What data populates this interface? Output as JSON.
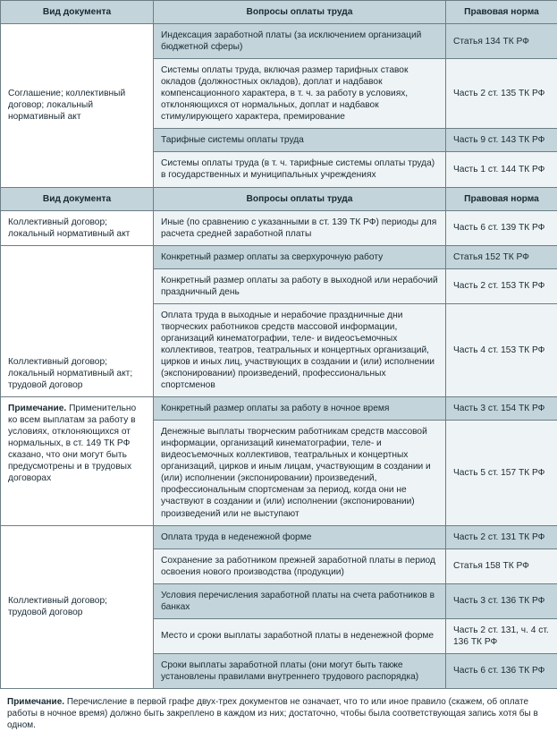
{
  "headers": {
    "col1": "Вид документа",
    "col2": "Вопросы оплаты труда",
    "col3": "Правовая норма"
  },
  "section1": {
    "doc": "Соглашение; коллективный договор; локальный нормативный акт",
    "rows": [
      {
        "q": "Индексация заработной платы (за исключением организаций бюджетной сферы)",
        "law": "Статья 134 ТК РФ"
      },
      {
        "q": "Системы оплаты труда, включая размер тарифных ставок окладов (должностных окладов), доплат и надбавок компенсационного характера, в т. ч. за работу в условиях, отклоняющихся от нормальных, доплат и надбавок стимулирующего характера, премирование",
        "law": "Часть 2 ст. 135 ТК РФ"
      },
      {
        "q": "Тарифные системы оплаты труда",
        "law": "Часть 9 ст. 143 ТК РФ"
      },
      {
        "q": "Системы оплаты труда (в т. ч. тарифные системы оплаты труда) в государственных и муниципальных учреждениях",
        "law": "Часть 1 ст. 144 ТК РФ"
      }
    ]
  },
  "section2": {
    "docA": "Коллективный договор; локальный нормативный акт",
    "docB": "Коллективный договор; локальный нормативный акт; трудовой договор",
    "noteLabel": "Примечание.",
    "noteText": " Применительно ко всем выплатам за работу в условиях, отклоняющихся от нормальных, в ст. 149 ТК РФ сказано, что они могут быть предусмотрены и в трудовых договорах",
    "rows": [
      {
        "q": "Иные (по сравнению с указанными в ст. 139 ТК РФ) периоды для расчета средней заработной платы",
        "law": "Часть 6 ст. 139 ТК РФ"
      },
      {
        "q": "Конкретный размер оплаты за сверхурочную работу",
        "law": "Статья 152 ТК РФ"
      },
      {
        "q": "Конкретный размер оплаты за работу в выходной или нерабочий праздничный день",
        "law": "Часть 2 ст. 153 ТК РФ"
      },
      {
        "q": "Оплата труда в выходные и нерабочие праздничные дни творческих работников средств массовой информации, организаций кинематографии, теле- и видеосъемочных коллективов, театров, театральных и концертных организаций, цирков и иных лиц, участвующих в создании и (или) исполнении (экспонировании) произведений, профессиональных спортсменов",
        "law": "Часть 4 ст. 153 ТК РФ"
      },
      {
        "q": "Конкретный размер оплаты за работу в ночное время",
        "law": "Часть 3 ст. 154 ТК РФ"
      },
      {
        "q": "Денежные выплаты творческим работникам средств массовой информации, организаций кинематографии, теле- и видеосъемочных коллективов, театральных и концертных организаций, цирков и иным лицам, участвующим в создании и (или) исполнении (экспонировании) произведений, профессиональным спортсменам за период, когда они не участвуют в создании и (или) исполнении (экспонировании) произведений или не выступают",
        "law": "Часть 5 ст. 157 ТК РФ"
      }
    ]
  },
  "section3": {
    "doc": "Коллективный договор; трудовой договор",
    "rows": [
      {
        "q": "Оплата труда в неденежной форме",
        "law": "Часть 2 ст. 131 ТК РФ"
      },
      {
        "q": "Сохранение за работником прежней заработной платы в период освоения нового производства (продукции)",
        "law": "Статья 158 ТК РФ"
      },
      {
        "q": "Условия перечисления заработной платы на счета работников в банках",
        "law": "Часть 3 ст. 136 ТК РФ"
      },
      {
        "q": "Место и сроки выплаты заработной платы в неденежной форме",
        "law": "Часть 2 ст. 131, ч. 4 ст. 136 ТК РФ"
      },
      {
        "q": "Сроки выплаты заработной платы (они могут быть также установлены правилами внутреннего трудового распорядка)",
        "law": "Часть 6 ст. 136 ТК РФ"
      }
    ]
  },
  "footnote": {
    "label": "Примечание.",
    "text": " Перечисление в первой графе двух-трех документов не означает, что то или иное правило (скажем, об оплате работы в ночное время) должно быть закреплено в каждом из них; достаточно, чтобы была соответствующая запись хотя бы в одном."
  }
}
